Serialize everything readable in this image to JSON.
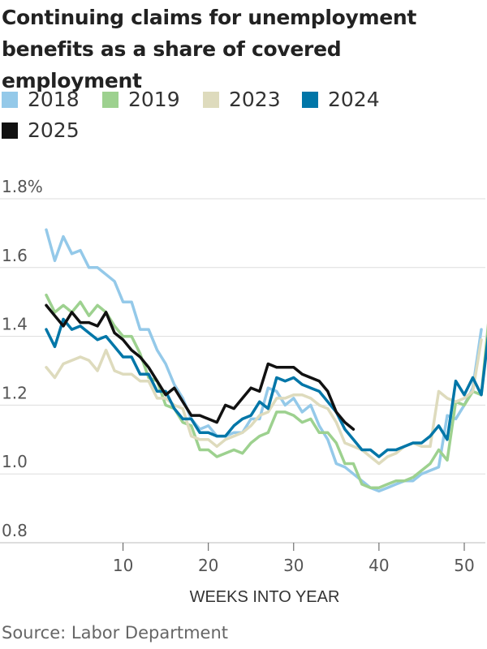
{
  "chart_data": {
    "type": "line",
    "title": "Continuing claims for unemployment benefits as a share of covered employment",
    "xlabel": "WEEKS INTO YEAR",
    "ylabel": "",
    "ylim": [
      0.8,
      1.8
    ],
    "xlim": [
      1,
      52
    ],
    "y_ticks": [
      {
        "value": 0.8,
        "label": "0.8"
      },
      {
        "value": 1.0,
        "label": "1.0"
      },
      {
        "value": 1.2,
        "label": "1.2"
      },
      {
        "value": 1.4,
        "label": "1.4"
      },
      {
        "value": 1.6,
        "label": "1.6"
      },
      {
        "value": 1.8,
        "label": "1.8%"
      }
    ],
    "x_ticks": [
      {
        "value": 10,
        "label": "10"
      },
      {
        "value": 20,
        "label": "20"
      },
      {
        "value": 30,
        "label": "30"
      },
      {
        "value": 40,
        "label": "40"
      },
      {
        "value": 50,
        "label": "50"
      }
    ],
    "grid": "horizontal",
    "legend_position": "top",
    "series": [
      {
        "name": "2018",
        "color": "#94c9e9",
        "x_start": 1,
        "values": [
          1.71,
          1.62,
          1.69,
          1.64,
          1.65,
          1.6,
          1.6,
          1.58,
          1.56,
          1.5,
          1.5,
          1.42,
          1.42,
          1.36,
          1.32,
          1.26,
          1.22,
          1.16,
          1.13,
          1.14,
          1.11,
          1.11,
          1.12,
          1.12,
          1.16,
          1.16,
          1.25,
          1.24,
          1.2,
          1.22,
          1.18,
          1.2,
          1.14,
          1.1,
          1.03,
          1.02,
          1.0,
          0.98,
          0.96,
          0.95,
          0.96,
          0.97,
          0.98,
          0.98,
          1.0,
          1.01,
          1.02,
          1.17,
          1.16,
          1.2,
          1.25,
          1.42
        ]
      },
      {
        "name": "2019",
        "color": "#9dd18f",
        "x_start": 1,
        "values": [
          1.52,
          1.47,
          1.49,
          1.47,
          1.5,
          1.46,
          1.49,
          1.47,
          1.43,
          1.4,
          1.4,
          1.35,
          1.28,
          1.27,
          1.2,
          1.19,
          1.15,
          1.14,
          1.07,
          1.07,
          1.05,
          1.06,
          1.07,
          1.06,
          1.09,
          1.11,
          1.12,
          1.18,
          1.18,
          1.17,
          1.15,
          1.16,
          1.12,
          1.12,
          1.09,
          1.03,
          1.03,
          0.97,
          0.96,
          0.96,
          0.97,
          0.98,
          0.98,
          0.99,
          1.01,
          1.03,
          1.07,
          1.04,
          1.21,
          1.2,
          1.24,
          1.23,
          1.48
        ]
      },
      {
        "name": "2023",
        "color": "#dedbbd",
        "x_start": 1,
        "values": [
          1.31,
          1.28,
          1.32,
          1.33,
          1.34,
          1.33,
          1.3,
          1.36,
          1.3,
          1.29,
          1.29,
          1.27,
          1.27,
          1.22,
          1.22,
          1.2,
          1.19,
          1.11,
          1.1,
          1.1,
          1.08,
          1.1,
          1.11,
          1.12,
          1.14,
          1.17,
          1.18,
          1.22,
          1.22,
          1.23,
          1.23,
          1.22,
          1.2,
          1.19,
          1.15,
          1.09,
          1.08,
          1.07,
          1.05,
          1.03,
          1.05,
          1.06,
          1.08,
          1.09,
          1.08,
          1.08,
          1.24,
          1.22,
          1.21,
          1.22,
          1.24,
          1.39
        ]
      },
      {
        "name": "2024",
        "color": "#0076a8",
        "x_start": 1,
        "values": [
          1.42,
          1.37,
          1.45,
          1.42,
          1.43,
          1.41,
          1.39,
          1.4,
          1.37,
          1.34,
          1.34,
          1.29,
          1.29,
          1.24,
          1.24,
          1.19,
          1.16,
          1.16,
          1.12,
          1.12,
          1.11,
          1.11,
          1.14,
          1.16,
          1.17,
          1.21,
          1.19,
          1.28,
          1.27,
          1.28,
          1.26,
          1.25,
          1.24,
          1.21,
          1.18,
          1.13,
          1.1,
          1.07,
          1.07,
          1.05,
          1.07,
          1.07,
          1.08,
          1.09,
          1.09,
          1.11,
          1.14,
          1.1,
          1.27,
          1.23,
          1.28,
          1.23,
          1.44
        ]
      },
      {
        "name": "2025",
        "color": "#111111",
        "x_start": 1,
        "values": [
          1.49,
          1.46,
          1.43,
          1.47,
          1.44,
          1.44,
          1.43,
          1.47,
          1.41,
          1.39,
          1.36,
          1.34,
          1.31,
          1.27,
          1.23,
          1.25,
          1.21,
          1.17,
          1.17,
          1.16,
          1.15,
          1.2,
          1.19,
          1.22,
          1.25,
          1.24,
          1.32,
          1.31,
          1.31,
          1.31,
          1.29,
          1.28,
          1.27,
          1.24,
          1.18,
          1.15,
          1.13
        ]
      }
    ]
  },
  "source": "Source: Labor Department"
}
